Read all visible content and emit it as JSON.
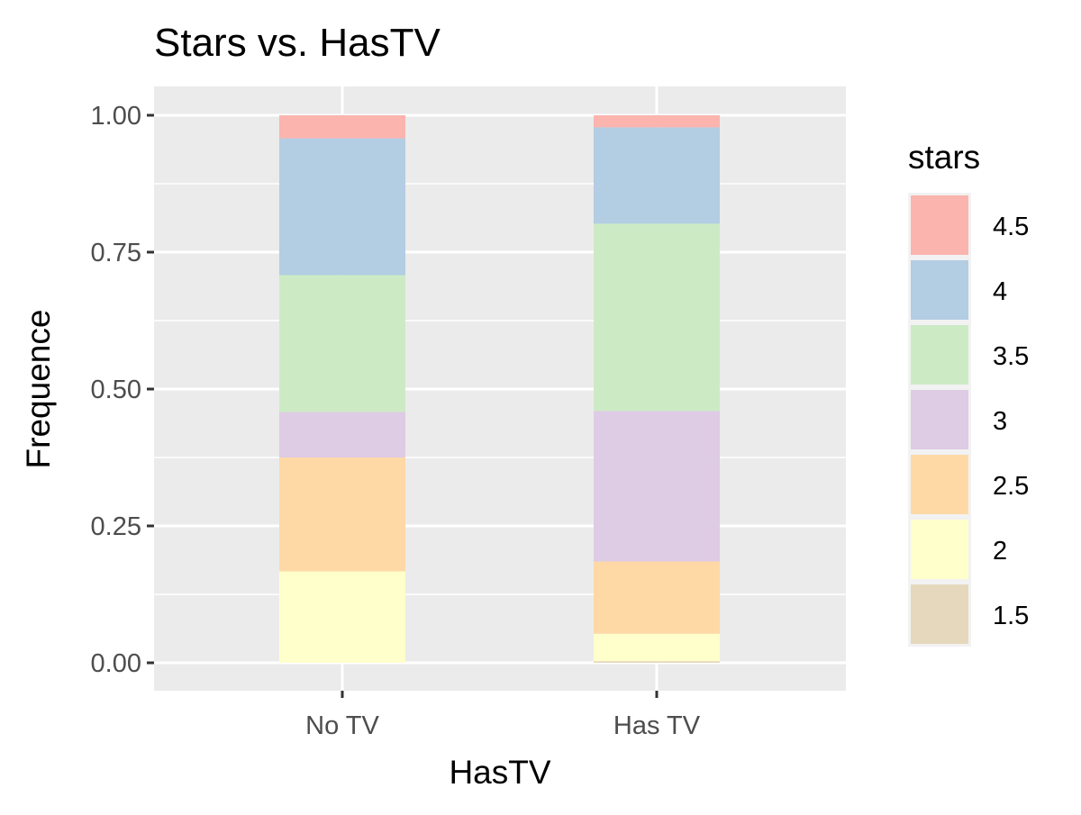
{
  "chart_data": {
    "type": "bar",
    "stacked": true,
    "title": "Stars vs. HasTV",
    "xlabel": "HasTV",
    "ylabel": "Frequence",
    "ylim": [
      0,
      1
    ],
    "yticks": [
      0.0,
      0.25,
      0.5,
      0.75,
      1.0
    ],
    "ytick_labels": [
      "0.00",
      "0.25",
      "0.50",
      "0.75",
      "1.00"
    ],
    "categories": [
      "No TV",
      "Has TV"
    ],
    "legend_title": "stars",
    "legend_position": "right",
    "grid": true,
    "series": [
      {
        "name": "1.5",
        "color": "#E5D8BD",
        "values": [
          0.0,
          0.003
        ]
      },
      {
        "name": "2",
        "color": "#FFFFCC",
        "values": [
          0.167,
          0.05
        ]
      },
      {
        "name": "2.5",
        "color": "#FED9A6",
        "values": [
          0.208,
          0.132
        ]
      },
      {
        "name": "3",
        "color": "#DECBE4",
        "values": [
          0.083,
          0.275
        ]
      },
      {
        "name": "3.5",
        "color": "#CCEBC5",
        "values": [
          0.25,
          0.342
        ]
      },
      {
        "name": "4",
        "color": "#B3CDE3",
        "values": [
          0.25,
          0.176
        ]
      },
      {
        "name": "4.5",
        "color": "#FBB4AE",
        "values": [
          0.042,
          0.022
        ]
      }
    ]
  }
}
